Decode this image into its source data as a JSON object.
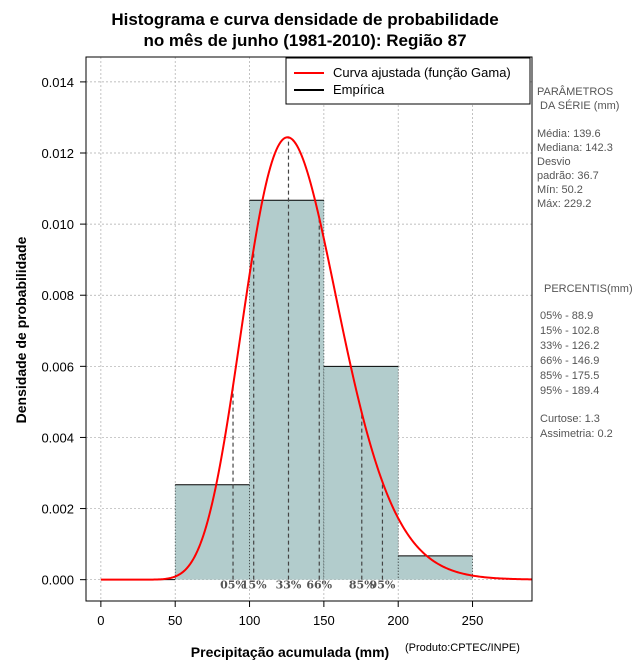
{
  "chart_data": {
    "type": "bar",
    "title_line1": "Histograma e curva densidade de probabilidade",
    "title_line2": "no mês de junho (1981-2010): Região 87",
    "xlabel": "Precipitação acumulada (mm)",
    "ylabel": "Densidade de probabilidade",
    "credit": "(Produto:CPTEC/INPE)",
    "xlim": [
      -10,
      290
    ],
    "ylim": [
      -0.0006,
      0.0147
    ],
    "x_ticks": [
      0,
      50,
      100,
      150,
      200,
      250
    ],
    "y_ticks": [
      0.0,
      0.002,
      0.004,
      0.006,
      0.008,
      0.01,
      0.012,
      0.014
    ],
    "x_tick_labels": [
      "0",
      "50",
      "100",
      "150",
      "200",
      "250"
    ],
    "y_tick_labels": [
      "0.000",
      "0.002",
      "0.004",
      "0.006",
      "0.008",
      "0.010",
      "0.012",
      "0.014"
    ],
    "grid": true,
    "bins": [
      {
        "from": 50,
        "to": 100,
        "density": 0.00267
      },
      {
        "from": 100,
        "to": 150,
        "density": 0.01067
      },
      {
        "from": 150,
        "to": 200,
        "density": 0.006
      },
      {
        "from": 200,
        "to": 250,
        "density": 0.00067
      }
    ],
    "gamma_curve": {
      "shape": 16.5,
      "scale": 8.1,
      "color": "#ff0000"
    },
    "percentile_lines": [
      {
        "label": "05%",
        "x": 88.9
      },
      {
        "label": "15%",
        "x": 102.8
      },
      {
        "label": "33%",
        "x": 126.2
      },
      {
        "label": "66%",
        "x": 146.9
      },
      {
        "label": "85%",
        "x": 175.5
      },
      {
        "label": "95%",
        "x": 189.4
      }
    ],
    "legend": {
      "position": "top-right",
      "entries": [
        {
          "label": "Curva ajustada (função Gama)",
          "color": "#ff0000"
        },
        {
          "label": "Empírica",
          "color": "#000000"
        }
      ]
    },
    "colors": {
      "bar_fill": "#b2cccc",
      "curve": "#ff0000",
      "grid": "#aaaaaa",
      "side_text": "#555555"
    }
  },
  "side_panel": {
    "params_title_1": "PARÂMETROS",
    "params_title_2": "DA SÉRIE (mm)",
    "stats": [
      "Média:  139.6",
      "Mediana:  142.3",
      "Desvio",
      "padrão:  36.7",
      "Mín:  50.2",
      "Máx:  229.2"
    ],
    "percentiles_title": "PERCENTIS(mm)",
    "percentiles": [
      "05% -  88.9",
      "15% -  102.8",
      "33% -  126.2",
      "66% -  146.9",
      "85% -  175.5",
      "95% -  189.4"
    ],
    "shape_stats": [
      "Curtose:  1.3",
      "Assimetria:  0.2"
    ]
  }
}
